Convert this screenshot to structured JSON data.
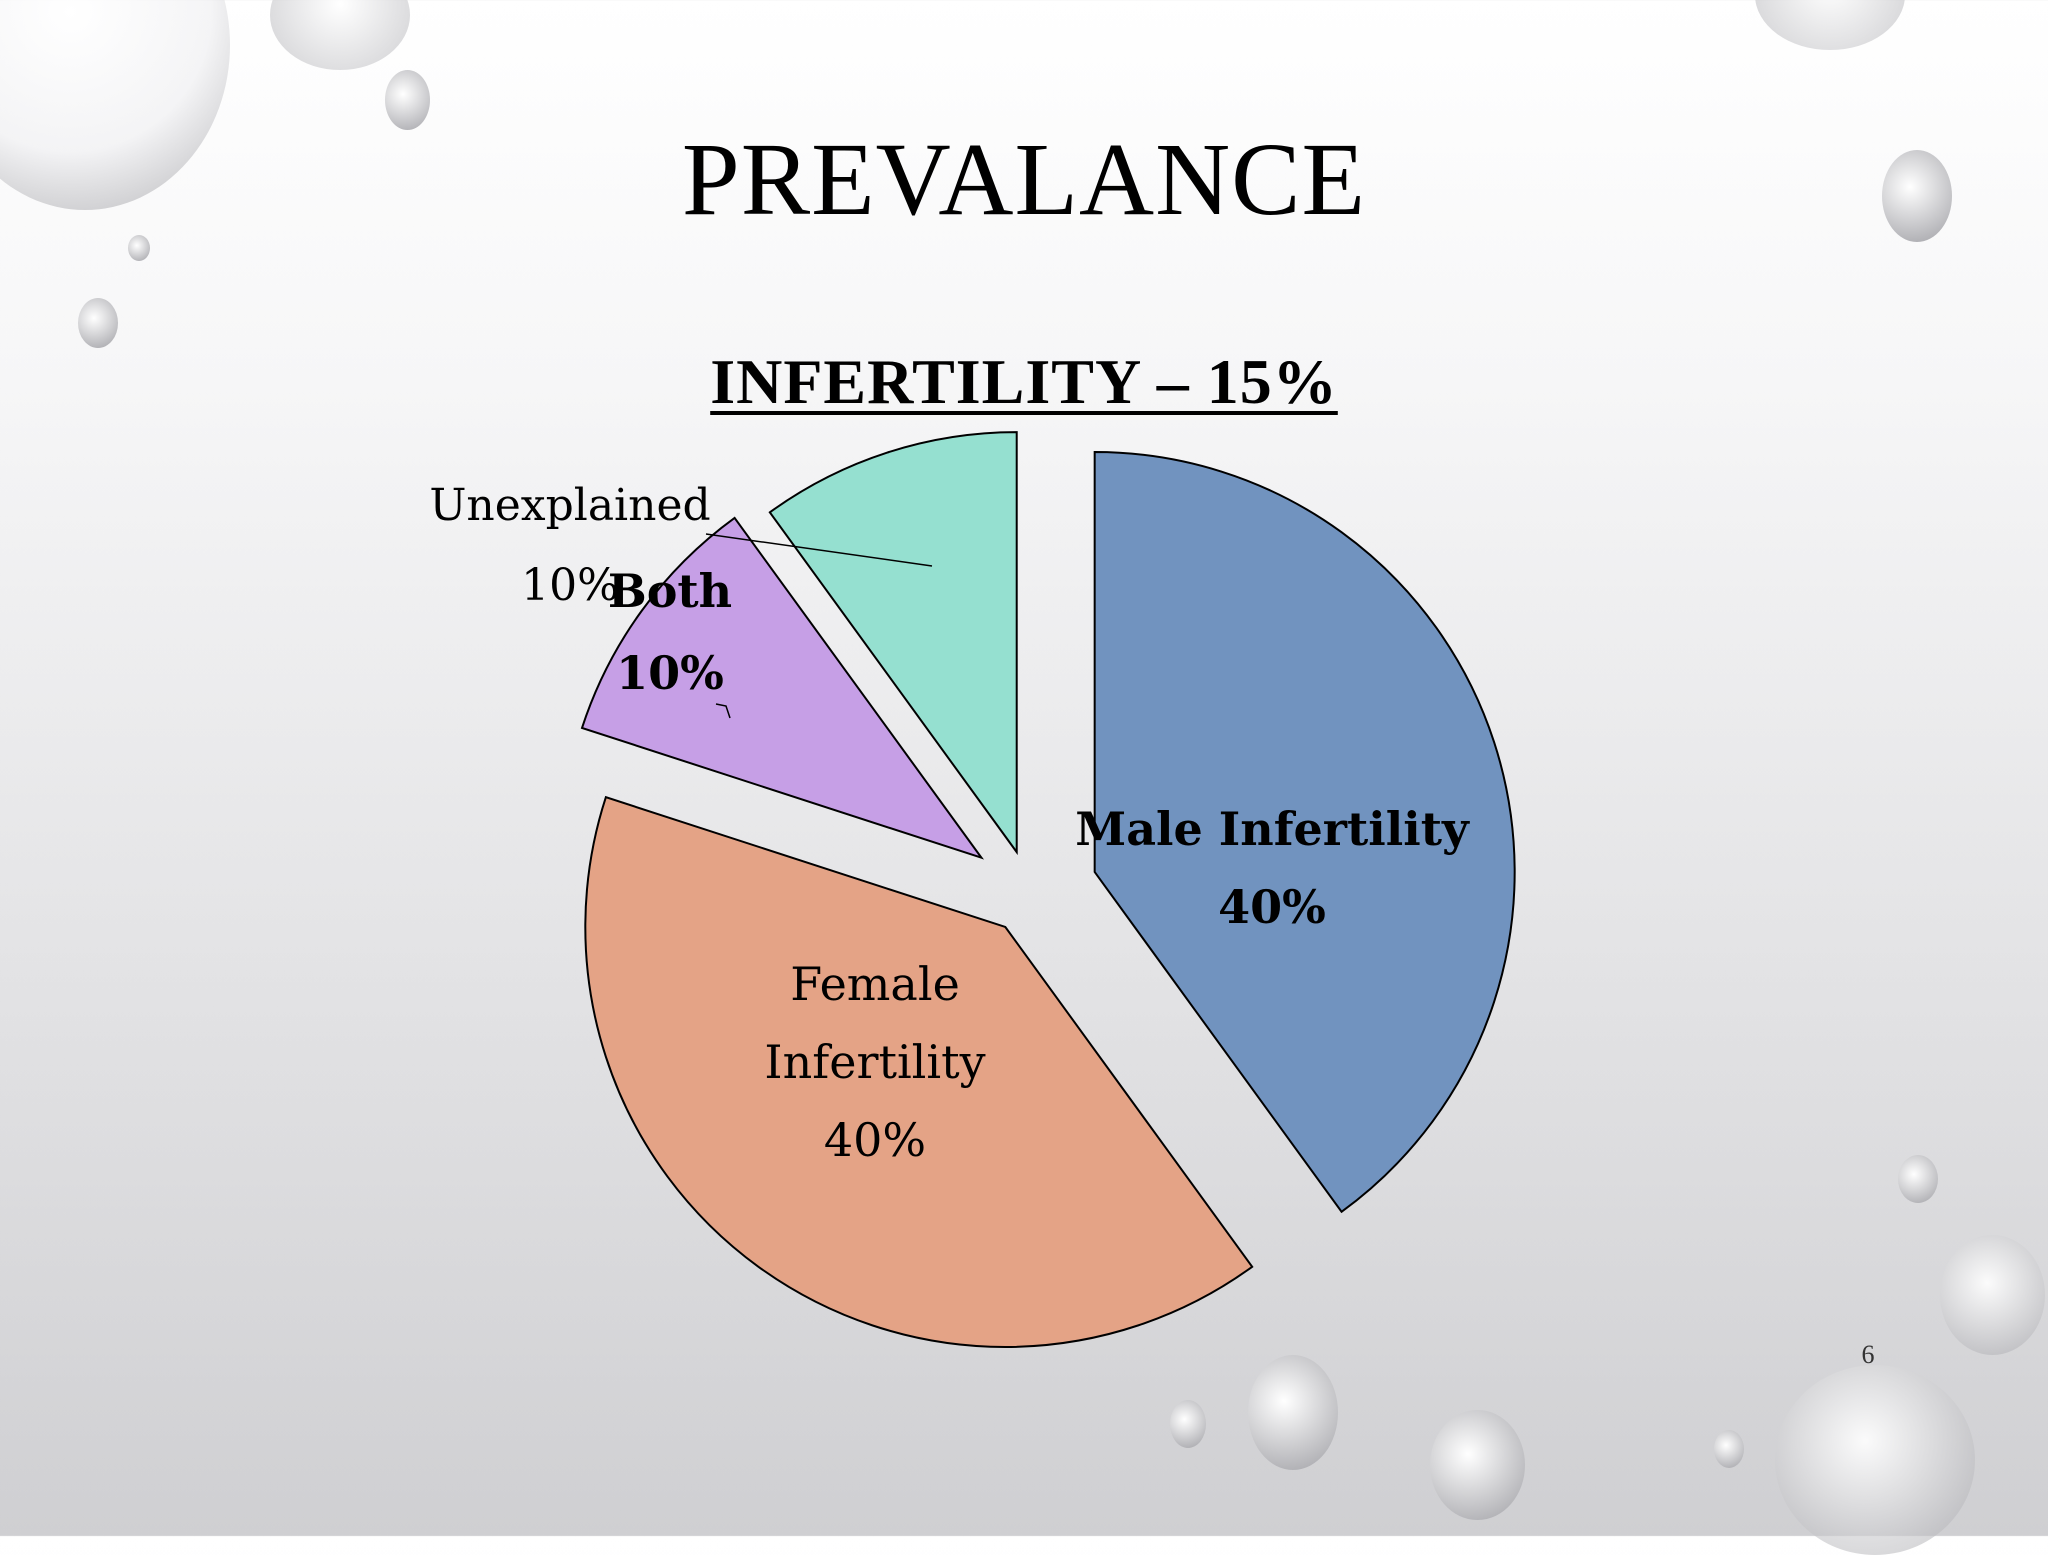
{
  "slide": {
    "title": "PREVALANCE",
    "page_number": "6"
  },
  "chart_data": {
    "type": "pie",
    "title": "INFERTILITY – 15%",
    "exploded": true,
    "slices": [
      {
        "name": "Male Infertility",
        "value": 40,
        "label_lines": [
          "Male Infertility",
          "40%"
        ],
        "color": "#7193bf",
        "bold": true
      },
      {
        "name": "Female Infertility",
        "value": 40,
        "label_lines": [
          "Female",
          "Infertility",
          "40%"
        ],
        "color": "#e4a386",
        "bold": false
      },
      {
        "name": "Both",
        "value": 10,
        "label_lines": [
          "Both",
          "10%"
        ],
        "color": "#c69fe6",
        "bold": true
      },
      {
        "name": "Unexplained",
        "value": 10,
        "label_lines": [
          "Unexplained",
          "10%"
        ],
        "color": "#95e0d0",
        "bold": false
      }
    ]
  },
  "colors": {
    "outline": "#000000",
    "background_top": "#ffffff",
    "background_bottom": "#cfcfd2"
  }
}
